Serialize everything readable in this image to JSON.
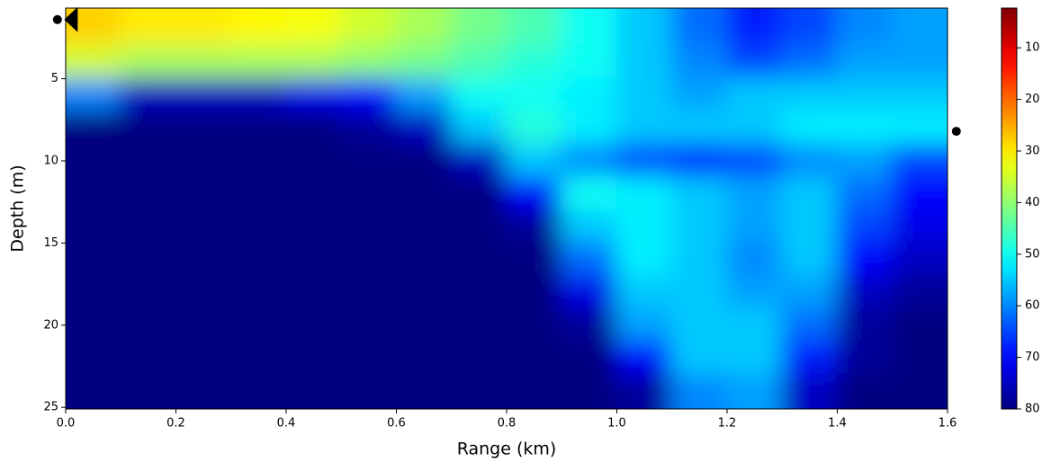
{
  "chart_data": {
    "type": "heatmap",
    "xlabel": "Range (km)",
    "ylabel": "Depth (m)",
    "xlim": [
      0,
      1.6
    ],
    "ylim": [
      0.7,
      25.1
    ],
    "y_inverted": true,
    "xticks": [
      {
        "value": 0,
        "label": "0.0"
      },
      {
        "value": 0.2,
        "label": "0.2"
      },
      {
        "value": 0.4,
        "label": "0.4"
      },
      {
        "value": 0.6,
        "label": "0.6"
      },
      {
        "value": 0.8,
        "label": "0.8"
      },
      {
        "value": 1.0,
        "label": "1.0"
      },
      {
        "value": 1.2,
        "label": "1.2"
      },
      {
        "value": 1.4,
        "label": "1.4"
      },
      {
        "value": 1.6,
        "label": "1.6"
      }
    ],
    "yticks": [
      5,
      10,
      15,
      20,
      25
    ],
    "colormap": "jet_r",
    "clim": [
      2.3,
      80
    ],
    "colorbar_inverted": true,
    "colorbar_ticks": [
      10,
      20,
      30,
      40,
      50,
      60,
      70,
      80
    ],
    "x_bins": [
      0,
      0.1,
      0.2,
      0.3,
      0.4,
      0.5,
      0.6,
      0.7,
      0.8,
      0.9,
      1.0,
      1.1,
      1.2,
      1.3,
      1.4,
      1.5,
      1.6
    ],
    "y_bins": [
      0.7,
      3,
      5,
      7,
      9,
      11,
      13,
      15,
      17,
      19,
      21,
      23,
      25.1
    ],
    "values": [
      [
        28,
        30,
        30,
        31,
        32,
        35,
        38,
        42,
        45,
        50,
        55,
        62,
        68,
        65,
        60,
        58
      ],
      [
        35,
        38,
        38,
        38,
        38,
        40,
        42,
        45,
        48,
        50,
        55,
        60,
        65,
        62,
        58,
        58
      ],
      [
        60,
        75,
        75,
        75,
        72,
        70,
        58,
        50,
        50,
        52,
        55,
        58,
        55,
        55,
        55,
        55
      ],
      [
        80,
        80,
        80,
        80,
        80,
        78,
        75,
        55,
        48,
        52,
        55,
        55,
        55,
        52,
        52,
        52
      ],
      [
        80,
        80,
        80,
        80,
        80,
        80,
        80,
        75,
        55,
        60,
        65,
        68,
        65,
        60,
        58,
        65
      ],
      [
        80,
        80,
        80,
        80,
        80,
        80,
        80,
        80,
        70,
        50,
        52,
        55,
        58,
        55,
        62,
        70
      ],
      [
        80,
        80,
        80,
        80,
        80,
        80,
        80,
        80,
        78,
        55,
        52,
        55,
        58,
        55,
        65,
        72
      ],
      [
        80,
        80,
        80,
        80,
        80,
        80,
        80,
        80,
        80,
        62,
        52,
        55,
        60,
        55,
        70,
        75
      ],
      [
        80,
        80,
        80,
        80,
        80,
        80,
        80,
        80,
        80,
        72,
        55,
        55,
        58,
        58,
        75,
        78
      ],
      [
        80,
        80,
        80,
        80,
        80,
        80,
        80,
        80,
        80,
        78,
        58,
        55,
        55,
        62,
        78,
        80
      ],
      [
        80,
        80,
        80,
        80,
        80,
        80,
        80,
        80,
        80,
        80,
        70,
        55,
        55,
        68,
        78,
        80
      ],
      [
        80,
        80,
        80,
        80,
        80,
        80,
        80,
        80,
        80,
        80,
        78,
        60,
        58,
        75,
        80,
        80
      ]
    ],
    "markers": [
      {
        "x": -0.015,
        "y": 1.4,
        "shape": "circle"
      },
      {
        "x": 0.012,
        "y": 1.4,
        "shape": "triangle"
      },
      {
        "x": 1.616,
        "y": 8.2,
        "shape": "circle"
      }
    ]
  }
}
